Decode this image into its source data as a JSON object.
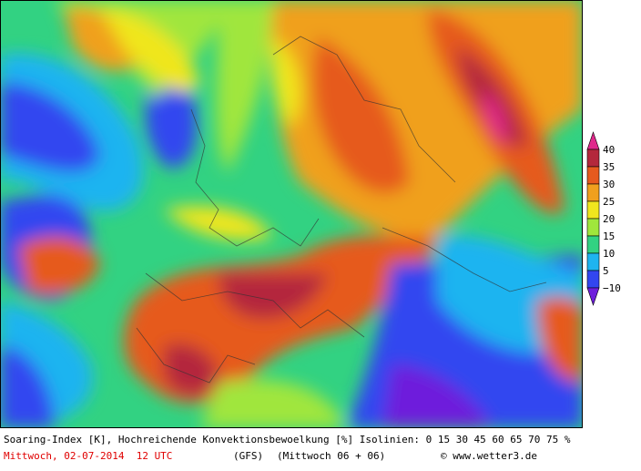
{
  "legend": {
    "items": [
      {
        "label": "40",
        "color": "#e0288c"
      },
      {
        "label": "35",
        "color": "#b4283c"
      },
      {
        "label": "30",
        "color": "#e65a1e"
      },
      {
        "label": "25",
        "color": "#f0a01e"
      },
      {
        "label": "20",
        "color": "#f0e61e"
      },
      {
        "label": "15",
        "color": "#a0e63c"
      },
      {
        "label": "10",
        "color": "#32d282"
      },
      {
        "label": "5",
        "color": "#1eb4f0"
      },
      {
        "label": "−10",
        "color": "#3246f0"
      }
    ],
    "bottom_color": "#6e1edc"
  },
  "footer": {
    "line1": "Soaring-Index [K], Hochreichende Konvektionsbewoelkung [%] Isolinien: 0 15 30 45 60 65 70 75 %",
    "date": "Mittwoch, 02-07-2014  12 UTC",
    "model": "(GFS)",
    "run": "(Mittwoch 06 + 06)",
    "credit": "© www.wetter3.de"
  }
}
